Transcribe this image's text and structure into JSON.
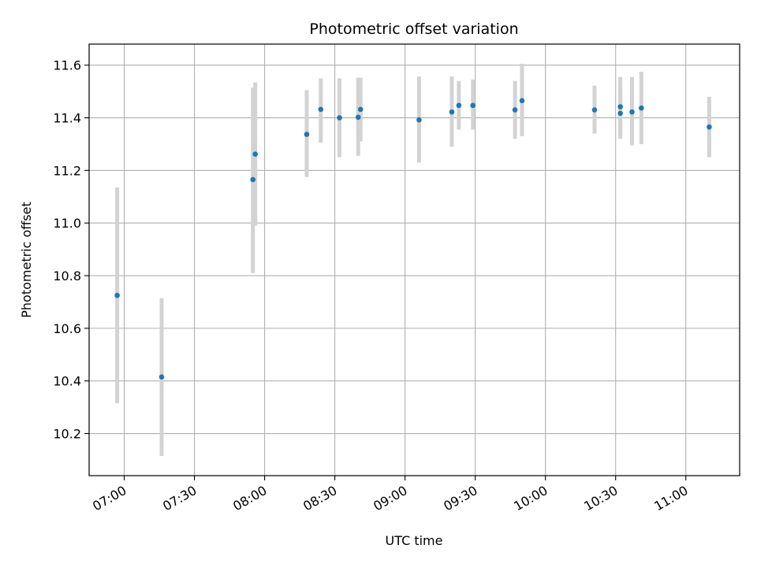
{
  "chart_data": {
    "type": "scatter",
    "title": "Photometric offset variation",
    "xlabel": "UTC time",
    "ylabel": "Photometric offset",
    "x_ticks": [
      "07:00",
      "07:30",
      "08:00",
      "08:30",
      "09:00",
      "09:30",
      "10:00",
      "10:30",
      "11:00"
    ],
    "y_ticks": [
      "10.2",
      "10.4",
      "10.6",
      "10.8",
      "11.0",
      "11.2",
      "11.4",
      "11.6"
    ],
    "xlim": [
      "06:45",
      "11:23"
    ],
    "ylim": [
      10.04,
      11.68
    ],
    "grid": true,
    "colors": {
      "point": "#1f77b4",
      "errorbar": "#d3d3d3",
      "grid": "#b0b0b0"
    },
    "points": [
      {
        "time": "06:57",
        "y": 10.725,
        "ylow": 10.315,
        "yhigh": 11.135
      },
      {
        "time": "07:16",
        "y": 10.415,
        "ylow": 10.115,
        "yhigh": 10.715
      },
      {
        "time": "07:55",
        "y": 11.165,
        "ylow": 10.81,
        "yhigh": 11.515
      },
      {
        "time": "07:56",
        "y": 11.262,
        "ylow": 10.99,
        "yhigh": 11.535
      },
      {
        "time": "08:18",
        "y": 11.337,
        "ylow": 11.175,
        "yhigh": 11.505
      },
      {
        "time": "08:24",
        "y": 11.432,
        "ylow": 11.305,
        "yhigh": 11.55
      },
      {
        "time": "08:32",
        "y": 11.4,
        "ylow": 11.25,
        "yhigh": 11.55
      },
      {
        "time": "08:40",
        "y": 11.402,
        "ylow": 11.255,
        "yhigh": 11.552
      },
      {
        "time": "08:41",
        "y": 11.432,
        "ylow": 11.31,
        "yhigh": 11.552
      },
      {
        "time": "09:06",
        "y": 11.392,
        "ylow": 11.23,
        "yhigh": 11.557
      },
      {
        "time": "09:20",
        "y": 11.422,
        "ylow": 11.29,
        "yhigh": 11.557
      },
      {
        "time": "09:23",
        "y": 11.447,
        "ylow": 11.355,
        "yhigh": 11.54
      },
      {
        "time": "09:29",
        "y": 11.447,
        "ylow": 11.355,
        "yhigh": 11.545
      },
      {
        "time": "09:47",
        "y": 11.43,
        "ylow": 11.32,
        "yhigh": 11.54
      },
      {
        "time": "09:50",
        "y": 11.465,
        "ylow": 11.33,
        "yhigh": 11.605
      },
      {
        "time": "10:21",
        "y": 11.43,
        "ylow": 11.34,
        "yhigh": 11.522
      },
      {
        "time": "10:32",
        "y": 11.442,
        "ylow": 11.33,
        "yhigh": 11.555
      },
      {
        "time": "10:32",
        "y": 11.417,
        "ylow": 11.32,
        "yhigh": 11.52
      },
      {
        "time": "10:37",
        "y": 11.422,
        "ylow": 11.295,
        "yhigh": 11.555
      },
      {
        "time": "10:41",
        "y": 11.437,
        "ylow": 11.3,
        "yhigh": 11.575
      },
      {
        "time": "11:10",
        "y": 11.365,
        "ylow": 11.25,
        "yhigh": 11.48
      }
    ]
  }
}
